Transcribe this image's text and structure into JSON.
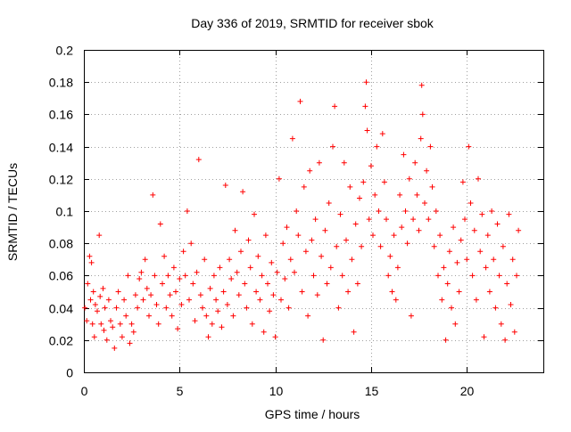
{
  "chart_data": {
    "type": "scatter",
    "title": "Day 336 of 2019, SRMTID for receiver sbok",
    "xlabel": "GPS time / hours",
    "ylabel": "SRMTID / TECUs",
    "xlim": [
      0,
      24
    ],
    "ylim": [
      0,
      0.2
    ],
    "x_ticks": [
      0,
      5,
      10,
      15,
      20
    ],
    "x_tick_labels": [
      "0",
      "5",
      "10",
      "15",
      "20"
    ],
    "y_ticks": [
      0,
      0.02,
      0.04,
      0.06,
      0.08,
      0.1,
      0.12,
      0.14,
      0.16,
      0.18,
      0.2
    ],
    "y_tick_labels": [
      "0",
      "0.02",
      "0.04",
      "0.06",
      "0.08",
      "0.1",
      "0.12",
      "0.14",
      "0.16",
      "0.18",
      "0.2"
    ],
    "grid": true,
    "marker": "+",
    "series": [
      {
        "name": "SRMTID",
        "color": "#ff0000",
        "points": [
          [
            0.05,
            0.04
          ],
          [
            0.15,
            0.032
          ],
          [
            0.2,
            0.055
          ],
          [
            0.3,
            0.072
          ],
          [
            0.35,
            0.045
          ],
          [
            0.4,
            0.068
          ],
          [
            0.45,
            0.03
          ],
          [
            0.5,
            0.05
          ],
          [
            0.55,
            0.022
          ],
          [
            0.6,
            0.042
          ],
          [
            0.7,
            0.038
          ],
          [
            0.8,
            0.085
          ],
          [
            0.85,
            0.047
          ],
          [
            0.9,
            0.03
          ],
          [
            1.0,
            0.052
          ],
          [
            1.05,
            0.026
          ],
          [
            1.1,
            0.04
          ],
          [
            1.2,
            0.02
          ],
          [
            1.3,
            0.045
          ],
          [
            1.4,
            0.032
          ],
          [
            1.5,
            0.028
          ],
          [
            1.6,
            0.015
          ],
          [
            1.7,
            0.04
          ],
          [
            1.8,
            0.05
          ],
          [
            1.9,
            0.03
          ],
          [
            2.0,
            0.022
          ],
          [
            2.1,
            0.045
          ],
          [
            2.2,
            0.035
          ],
          [
            2.3,
            0.06
          ],
          [
            2.4,
            0.018
          ],
          [
            2.5,
            0.03
          ],
          [
            2.6,
            0.025
          ],
          [
            2.7,
            0.048
          ],
          [
            2.8,
            0.04
          ],
          [
            2.9,
            0.058
          ],
          [
            3.0,
            0.062
          ],
          [
            3.1,
            0.045
          ],
          [
            3.2,
            0.07
          ],
          [
            3.3,
            0.052
          ],
          [
            3.4,
            0.035
          ],
          [
            3.5,
            0.048
          ],
          [
            3.6,
            0.11
          ],
          [
            3.7,
            0.06
          ],
          [
            3.8,
            0.042
          ],
          [
            3.9,
            0.03
          ],
          [
            4.0,
            0.092
          ],
          [
            4.1,
            0.055
          ],
          [
            4.2,
            0.072
          ],
          [
            4.3,
            0.04
          ],
          [
            4.4,
            0.06
          ],
          [
            4.5,
            0.048
          ],
          [
            4.6,
            0.035
          ],
          [
            4.7,
            0.065
          ],
          [
            4.8,
            0.05
          ],
          [
            4.9,
            0.027
          ],
          [
            5.0,
            0.058
          ],
          [
            5.1,
            0.042
          ],
          [
            5.2,
            0.075
          ],
          [
            5.3,
            0.06
          ],
          [
            5.4,
            0.1
          ],
          [
            5.5,
            0.045
          ],
          [
            5.6,
            0.08
          ],
          [
            5.7,
            0.055
          ],
          [
            5.8,
            0.032
          ],
          [
            5.9,
            0.062
          ],
          [
            6.0,
            0.132
          ],
          [
            6.1,
            0.048
          ],
          [
            6.2,
            0.04
          ],
          [
            6.3,
            0.07
          ],
          [
            6.4,
            0.035
          ],
          [
            6.5,
            0.022
          ],
          [
            6.6,
            0.052
          ],
          [
            6.7,
            0.03
          ],
          [
            6.8,
            0.06
          ],
          [
            6.9,
            0.045
          ],
          [
            7.0,
            0.038
          ],
          [
            7.1,
            0.065
          ],
          [
            7.2,
            0.028
          ],
          [
            7.3,
            0.05
          ],
          [
            7.4,
            0.116
          ],
          [
            7.5,
            0.042
          ],
          [
            7.6,
            0.07
          ],
          [
            7.7,
            0.058
          ],
          [
            7.8,
            0.035
          ],
          [
            7.9,
            0.088
          ],
          [
            8.0,
            0.062
          ],
          [
            8.1,
            0.048
          ],
          [
            8.2,
            0.075
          ],
          [
            8.3,
            0.112
          ],
          [
            8.4,
            0.055
          ],
          [
            8.5,
            0.04
          ],
          [
            8.6,
            0.082
          ],
          [
            8.7,
            0.065
          ],
          [
            8.8,
            0.03
          ],
          [
            8.9,
            0.098
          ],
          [
            9.0,
            0.05
          ],
          [
            9.1,
            0.072
          ],
          [
            9.2,
            0.045
          ],
          [
            9.3,
            0.06
          ],
          [
            9.4,
            0.025
          ],
          [
            9.5,
            0.085
          ],
          [
            9.6,
            0.055
          ],
          [
            9.7,
            0.038
          ],
          [
            9.8,
            0.068
          ],
          [
            9.9,
            0.048
          ],
          [
            10.0,
            0.022
          ],
          [
            10.1,
            0.062
          ],
          [
            10.2,
            0.12
          ],
          [
            10.3,
            0.045
          ],
          [
            10.4,
            0.08
          ],
          [
            10.5,
            0.058
          ],
          [
            10.6,
            0.09
          ],
          [
            10.7,
            0.04
          ],
          [
            10.8,
            0.07
          ],
          [
            10.9,
            0.145
          ],
          [
            11.0,
            0.062
          ],
          [
            11.1,
            0.1
          ],
          [
            11.2,
            0.085
          ],
          [
            11.3,
            0.168
          ],
          [
            11.4,
            0.05
          ],
          [
            11.5,
            0.115
          ],
          [
            11.6,
            0.075
          ],
          [
            11.7,
            0.035
          ],
          [
            11.8,
            0.125
          ],
          [
            11.9,
            0.082
          ],
          [
            12.0,
            0.06
          ],
          [
            12.1,
            0.095
          ],
          [
            12.2,
            0.048
          ],
          [
            12.3,
            0.13
          ],
          [
            12.4,
            0.072
          ],
          [
            12.5,
            0.02
          ],
          [
            12.6,
            0.088
          ],
          [
            12.7,
            0.055
          ],
          [
            12.8,
            0.105
          ],
          [
            12.9,
            0.065
          ],
          [
            13.0,
            0.14
          ],
          [
            13.1,
            0.165
          ],
          [
            13.2,
            0.078
          ],
          [
            13.3,
            0.04
          ],
          [
            13.4,
            0.098
          ],
          [
            13.5,
            0.06
          ],
          [
            13.6,
            0.13
          ],
          [
            13.7,
            0.082
          ],
          [
            13.8,
            0.05
          ],
          [
            13.9,
            0.115
          ],
          [
            14.0,
            0.07
          ],
          [
            14.1,
            0.025
          ],
          [
            14.2,
            0.092
          ],
          [
            14.3,
            0.055
          ],
          [
            14.4,
            0.108
          ],
          [
            14.5,
            0.078
          ],
          [
            14.6,
            0.118
          ],
          [
            14.7,
            0.165
          ],
          [
            14.75,
            0.18
          ],
          [
            14.8,
            0.15
          ],
          [
            14.9,
            0.095
          ],
          [
            15.0,
            0.128
          ],
          [
            15.1,
            0.085
          ],
          [
            15.2,
            0.11
          ],
          [
            15.3,
            0.14
          ],
          [
            15.4,
            0.1
          ],
          [
            15.5,
            0.078
          ],
          [
            15.6,
            0.148
          ],
          [
            15.7,
            0.118
          ],
          [
            15.8,
            0.095
          ],
          [
            15.9,
            0.06
          ],
          [
            16.0,
            0.072
          ],
          [
            16.1,
            0.05
          ],
          [
            16.2,
            0.085
          ],
          [
            16.3,
            0.045
          ],
          [
            16.4,
            0.065
          ],
          [
            16.5,
            0.11
          ],
          [
            16.6,
            0.09
          ],
          [
            16.7,
            0.135
          ],
          [
            16.8,
            0.1
          ],
          [
            16.9,
            0.08
          ],
          [
            17.0,
            0.12
          ],
          [
            17.1,
            0.035
          ],
          [
            17.2,
            0.095
          ],
          [
            17.3,
            0.13
          ],
          [
            17.4,
            0.11
          ],
          [
            17.5,
            0.088
          ],
          [
            17.6,
            0.145
          ],
          [
            17.65,
            0.178
          ],
          [
            17.7,
            0.16
          ],
          [
            17.8,
            0.105
          ],
          [
            17.9,
            0.125
          ],
          [
            18.0,
            0.095
          ],
          [
            18.1,
            0.14
          ],
          [
            18.2,
            0.115
          ],
          [
            18.3,
            0.078
          ],
          [
            18.4,
            0.1
          ],
          [
            18.5,
            0.06
          ],
          [
            18.6,
            0.085
          ],
          [
            18.7,
            0.045
          ],
          [
            18.8,
            0.065
          ],
          [
            18.9,
            0.02
          ],
          [
            19.0,
            0.055
          ],
          [
            19.1,
            0.075
          ],
          [
            19.2,
            0.04
          ],
          [
            19.3,
            0.09
          ],
          [
            19.4,
            0.03
          ],
          [
            19.5,
            0.068
          ],
          [
            19.6,
            0.05
          ],
          [
            19.7,
            0.082
          ],
          [
            19.8,
            0.118
          ],
          [
            19.9,
            0.095
          ],
          [
            20.0,
            0.07
          ],
          [
            20.1,
            0.14
          ],
          [
            20.2,
            0.105
          ],
          [
            20.3,
            0.06
          ],
          [
            20.4,
            0.088
          ],
          [
            20.5,
            0.045
          ],
          [
            20.6,
            0.12
          ],
          [
            20.7,
            0.075
          ],
          [
            20.8,
            0.098
          ],
          [
            20.9,
            0.022
          ],
          [
            21.0,
            0.065
          ],
          [
            21.1,
            0.085
          ],
          [
            21.2,
            0.05
          ],
          [
            21.3,
            0.1
          ],
          [
            21.4,
            0.07
          ],
          [
            21.5,
            0.04
          ],
          [
            21.6,
            0.092
          ],
          [
            21.7,
            0.06
          ],
          [
            21.8,
            0.03
          ],
          [
            21.9,
            0.078
          ],
          [
            22.0,
            0.02
          ],
          [
            22.1,
            0.055
          ],
          [
            22.2,
            0.098
          ],
          [
            22.3,
            0.042
          ],
          [
            22.4,
            0.07
          ],
          [
            22.5,
            0.025
          ],
          [
            22.6,
            0.06
          ],
          [
            22.7,
            0.088
          ]
        ]
      }
    ]
  }
}
